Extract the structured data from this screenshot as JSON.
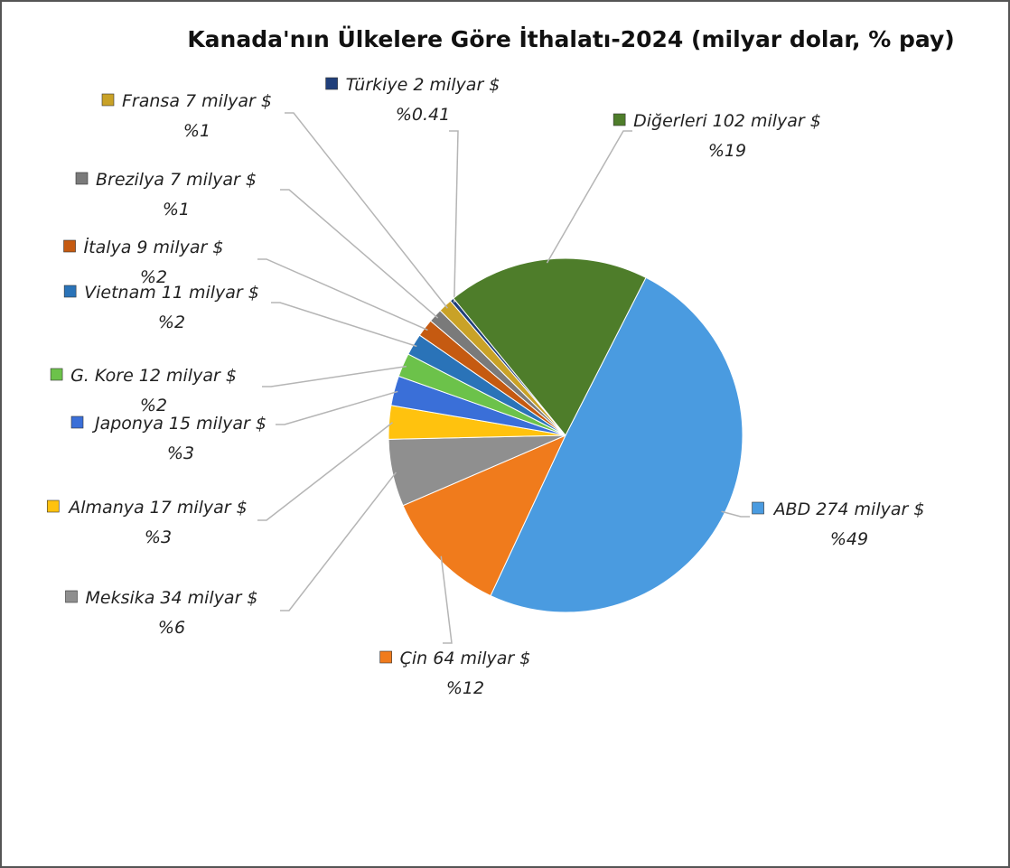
{
  "chart_data": {
    "type": "pie",
    "title": "Kanada'nın Ülkelere Göre İthalatı-2024 (milyar dolar, % pay)",
    "categories": [
      "ABD",
      "Çin",
      "Meksika",
      "Almanya",
      "Japonya",
      "G. Kore",
      "Vietnam",
      "İtalya",
      "Brezilya",
      "Fransa",
      "Türkiye",
      "Diğerleri"
    ],
    "values": [
      274,
      64,
      34,
      17,
      15,
      12,
      11,
      9,
      7,
      7,
      2,
      102
    ],
    "value_labels": [
      "274 milyar $",
      "64 milyar $",
      "34 milyar $",
      "17 milyar $",
      "15 milyar $",
      "12 milyar $",
      "11 milyar $",
      "9 milyar $",
      "7 milyar $",
      "7 milyar $",
      "2 milyar $",
      "102 milyar $"
    ],
    "shares": [
      49,
      12,
      6,
      3,
      3,
      2,
      2,
      2,
      1,
      1,
      0.41,
      19
    ],
    "share_labels": [
      "%49",
      "%12",
      "%6",
      "%3",
      "%3",
      "%2",
      "%2",
      "%2",
      "%1",
      "%1",
      "%0.41",
      "%19"
    ],
    "colors": [
      "#4a9be0",
      "#f07b1c",
      "#8f8f8f",
      "#ffc20e",
      "#3a6fd8",
      "#6cc24a",
      "#2a73b8",
      "#c55a11",
      "#7a7a7a",
      "#c9a227",
      "#203f7a",
      "#4e7d2a"
    ]
  }
}
